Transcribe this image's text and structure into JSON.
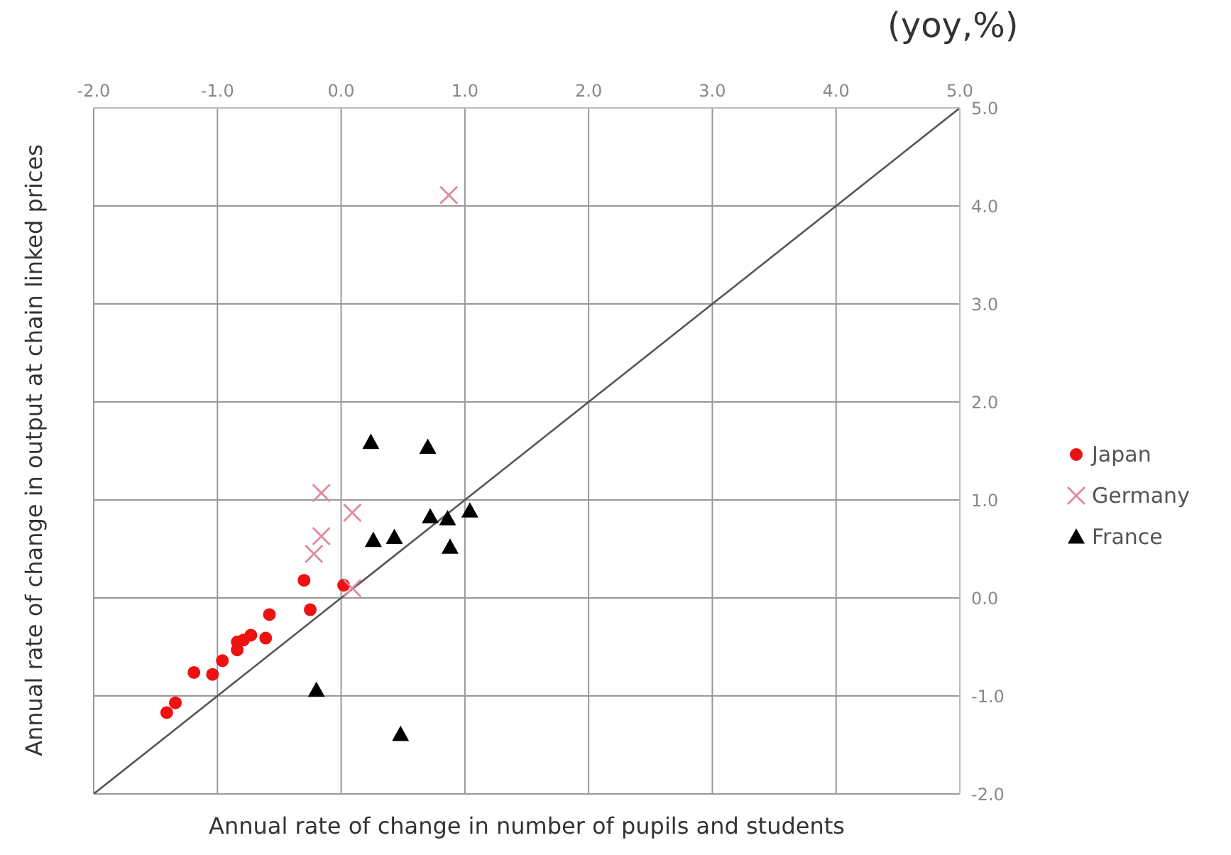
{
  "chart_data": {
    "type": "scatter",
    "xlabel": "Annual rate of change in number of pupils and students",
    "ylabel": "Annual rate of change in output at chain linked prices",
    "annotations": [
      "(yoy,%)"
    ],
    "xlim": [
      -2,
      5
    ],
    "ylim": [
      -2,
      5
    ],
    "xticks": [
      {
        "value": -2,
        "label": "-2.0"
      },
      {
        "value": -1,
        "label": "-1.0"
      },
      {
        "value": 0,
        "label": "0.0"
      },
      {
        "value": 1,
        "label": "1.0"
      },
      {
        "value": 2,
        "label": "2.0"
      },
      {
        "value": 3,
        "label": "3.0"
      },
      {
        "value": 4,
        "label": "4.0"
      },
      {
        "value": 5,
        "label": "5.0"
      }
    ],
    "yticks": [
      {
        "value": -2,
        "label": "-2.0"
      },
      {
        "value": -1,
        "label": "-1.0"
      },
      {
        "value": 0,
        "label": "0.0"
      },
      {
        "value": 1,
        "label": "1.0"
      },
      {
        "value": 2,
        "label": "2.0"
      },
      {
        "value": 3,
        "label": "3.0"
      },
      {
        "value": 4,
        "label": "4.0"
      },
      {
        "value": 5,
        "label": "5.0"
      }
    ],
    "grid": true,
    "legend": "right",
    "series": [
      {
        "name": "Japan",
        "color": "#ee1111",
        "marker": "circle",
        "x": [
          -1.41,
          -1.34,
          -1.19,
          -1.04,
          -0.96,
          -0.84,
          -0.84,
          -0.79,
          -0.73,
          -0.61,
          -0.58,
          -0.3,
          -0.25,
          0.02
        ],
        "values": [
          -1.17,
          -1.07,
          -0.76,
          -0.78,
          -0.64,
          -0.53,
          -0.45,
          -0.43,
          -0.38,
          -0.41,
          -0.17,
          0.18,
          -0.12,
          0.13
        ]
      },
      {
        "name": "Germany",
        "color": "#e08a9a",
        "marker": "cross",
        "x": [
          0.87,
          -0.16,
          0.09,
          -0.16,
          -0.22,
          0.09
        ],
        "values": [
          4.11,
          1.07,
          0.87,
          0.63,
          0.45,
          0.1
        ]
      },
      {
        "name": "France",
        "color": "#000000",
        "marker": "triangle",
        "x": [
          0.24,
          0.7,
          0.72,
          0.86,
          1.04,
          0.26,
          0.43,
          0.88,
          -0.2,
          0.48
        ],
        "values": [
          1.59,
          1.54,
          0.83,
          0.81,
          0.89,
          0.59,
          0.62,
          0.52,
          -0.94,
          -1.39
        ]
      },
      {
        "type": "line",
        "color": "#555555",
        "marker": "none",
        "x": [
          -2,
          5
        ],
        "values": [
          -2,
          5
        ]
      }
    ]
  }
}
